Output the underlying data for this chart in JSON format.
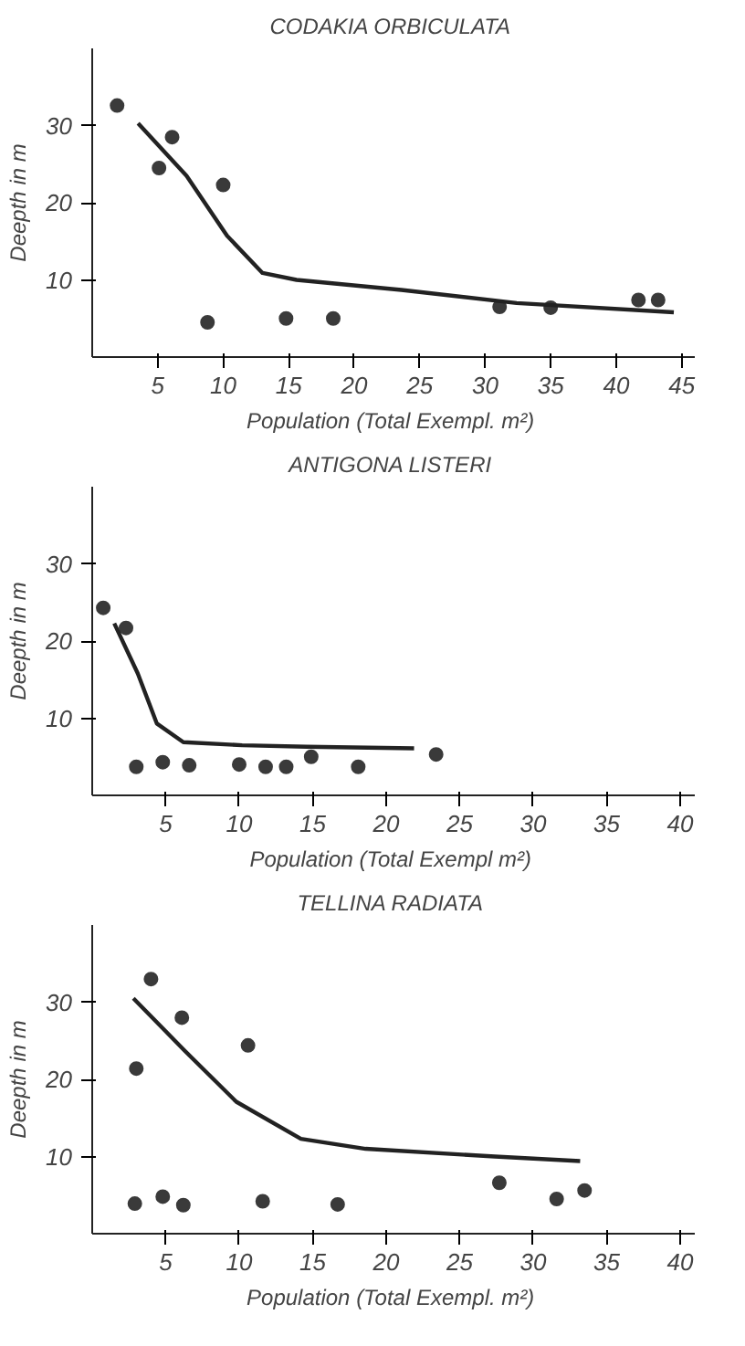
{
  "chart_data": [
    {
      "type": "scatter",
      "title": "CODAKIA  ORBICULATA",
      "xlabel": "Population  (Total Exempl. m²)",
      "ylabel": "Deepth in m",
      "xlim": [
        0,
        46
      ],
      "ylim": [
        0,
        40
      ],
      "xticks": [
        5,
        10,
        15,
        20,
        25,
        30,
        35,
        40,
        45
      ],
      "yticks": [
        10,
        20,
        30
      ],
      "series": [
        {
          "type": "scatter",
          "marker": "circle",
          "color": "#3a3a3a",
          "x": [
            1.9,
            5.1,
            6.1,
            10.0,
            8.8,
            14.8,
            18.4,
            31.1,
            35.0,
            41.7,
            43.2
          ],
          "values": [
            32.6,
            24.5,
            28.5,
            22.3,
            4.5,
            5.0,
            5.0,
            6.5,
            6.4,
            7.4,
            7.4
          ]
        },
        {
          "type": "line",
          "marker": "none",
          "color": "#222222",
          "x": [
            3.5,
            7.2,
            10.3,
            13,
            15.6,
            23.6,
            32.4,
            44.4
          ],
          "values": [
            30.3,
            23.5,
            15.7,
            10.9,
            10,
            8.7,
            7,
            5.8
          ]
        }
      ]
    },
    {
      "type": "scatter",
      "title": "ANTIGONA  LISTERI",
      "xlabel": "Population (Total Exempl  m²)",
      "ylabel": "Deepth in m",
      "xlim": [
        0,
        41
      ],
      "ylim": [
        0,
        40
      ],
      "xticks": [
        5,
        10,
        15,
        20,
        25,
        30,
        35,
        40
      ],
      "yticks": [
        10,
        20,
        30
      ],
      "series": [
        {
          "type": "scatter",
          "marker": "circle",
          "color": "#3a3a3a",
          "x": [
            0.75,
            2.3,
            3.0,
            4.8,
            6.6,
            10.0,
            11.8,
            13.2,
            14.9,
            18.1,
            23.4
          ],
          "values": [
            24.3,
            21.7,
            3.7,
            4.3,
            3.9,
            4.0,
            3.7,
            3.7,
            5.0,
            3.7,
            5.3
          ]
        },
        {
          "type": "line",
          "marker": "none",
          "color": "#222222",
          "x": [
            1.5,
            3.1,
            4.4,
            6.2,
            10.2,
            14.6,
            21.9
          ],
          "values": [
            22.3,
            15.8,
            9.3,
            6.9,
            6.5,
            6.3,
            6.1
          ]
        }
      ]
    },
    {
      "type": "scatter",
      "title": "TELLINA  RADIATA",
      "xlabel": "Population  (Total Exempl. m²)",
      "ylabel": "Deepth in m",
      "xlim": [
        0,
        41
      ],
      "ylim": [
        0,
        40
      ],
      "xticks": [
        5,
        10,
        15,
        20,
        25,
        30,
        35,
        40
      ],
      "yticks": [
        10,
        20,
        30
      ],
      "series": [
        {
          "type": "scatter",
          "marker": "circle",
          "color": "#3a3a3a",
          "x": [
            4.0,
            3.0,
            6.1,
            10.6,
            2.9,
            4.8,
            6.2,
            11.6,
            16.7,
            27.7,
            31.6,
            33.5
          ],
          "values": [
            33,
            21.4,
            28,
            24.4,
            3.9,
            4.8,
            3.7,
            4.2,
            3.8,
            6.6,
            4.5,
            5.6
          ]
        },
        {
          "type": "line",
          "marker": "none",
          "color": "#222222",
          "x": [
            2.8,
            6.3,
            9.8,
            14.2,
            18.6,
            27.4,
            33.2
          ],
          "values": [
            30.5,
            23.7,
            17.1,
            12.3,
            11,
            10,
            9.4
          ]
        }
      ]
    }
  ]
}
